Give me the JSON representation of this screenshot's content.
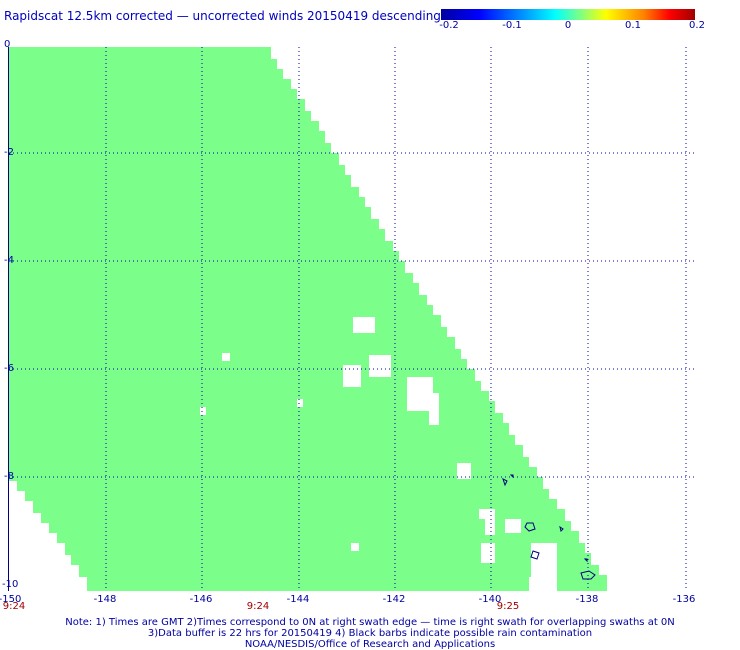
{
  "title": "Rapidscat 12.5km corrected — uncorrected winds 20150419 descending",
  "colorbar": {
    "ticks": [
      "-0.2",
      "-0.1",
      "0",
      "0.1",
      "0.2"
    ],
    "range": [
      -0.2,
      0.2
    ]
  },
  "map": {
    "lon_range": [
      -150,
      -136
    ],
    "lat_range": [
      0,
      -10
    ],
    "lon_ticks": [
      "-150",
      "-148",
      "-146",
      "-144",
      "-142",
      "-140",
      "-138",
      "-136"
    ],
    "lat_ticks": [
      "0",
      "-2",
      "-4",
      "-6",
      "-8",
      "-10"
    ],
    "time_labels": [
      "9:24",
      "9:24",
      "9:25"
    ],
    "fill_color": "#7cff8a",
    "grid_color": "#0000a0"
  },
  "notes": {
    "line1": "Note: 1) Times are GMT 2)Times correspond to 0N at right swath edge — time is right swath for overlapping swaths at 0N",
    "line2": "3)Data buffer is 22 hrs for 20150419 4) Black barbs indicate possible rain contamination",
    "line3": "NOAA/NESDIS/Office of Research and Applications"
  }
}
